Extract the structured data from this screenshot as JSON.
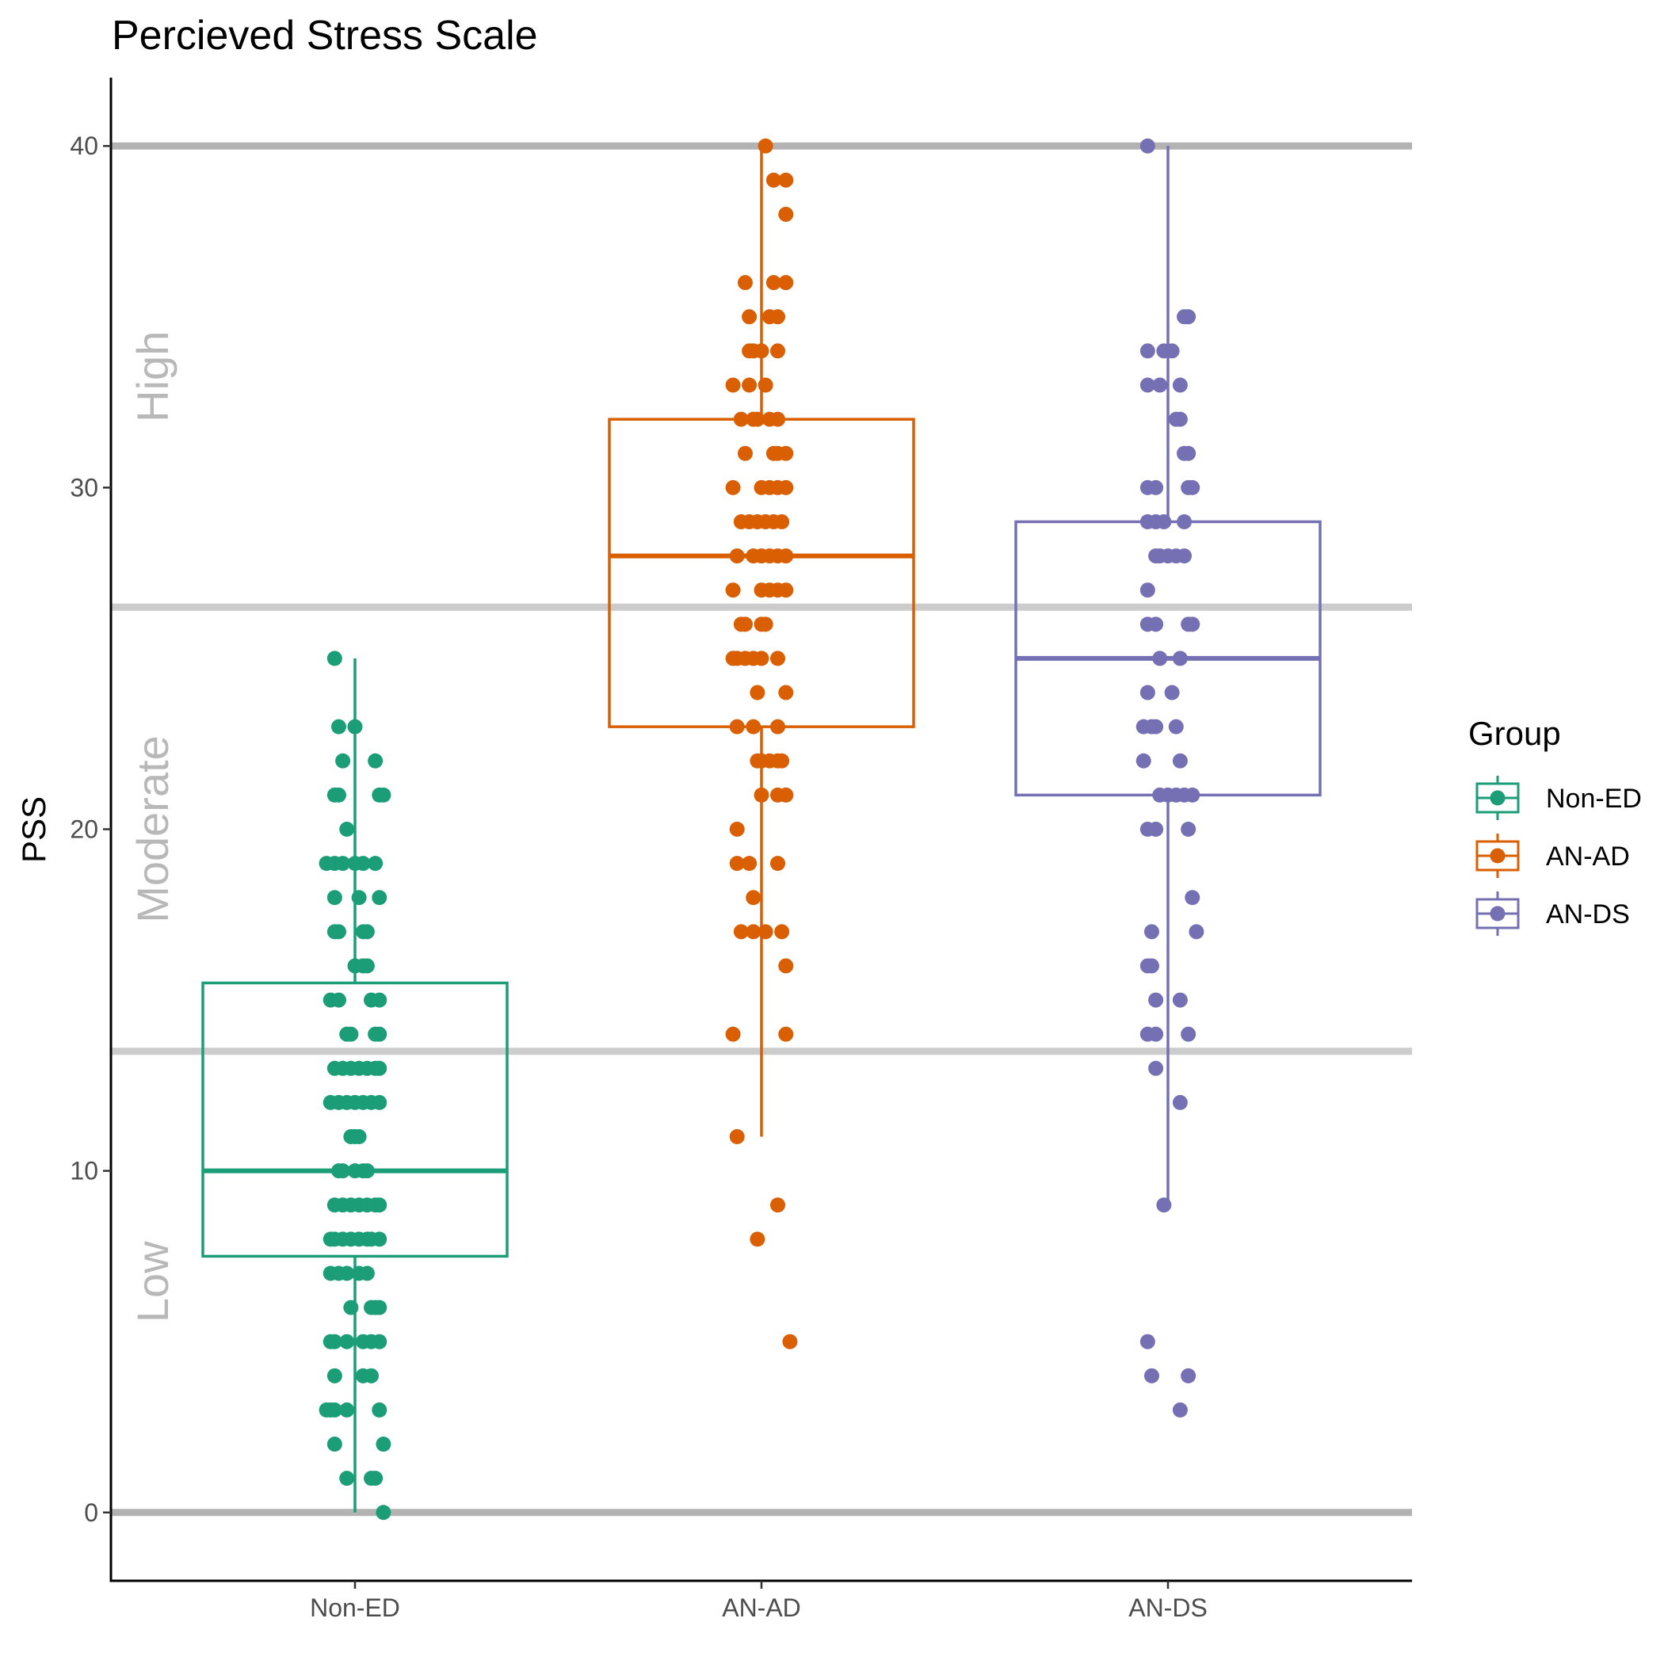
{
  "chart_data": {
    "type": "boxplot",
    "title": "Percieved Stress Scale",
    "ylabel": "PSS",
    "xlabel": "",
    "ylim": [
      -2,
      42
    ],
    "yticks": [
      0,
      10,
      20,
      30,
      40
    ],
    "categories": [
      "Non-ED",
      "AN-AD",
      "AN-DS"
    ],
    "reference_lines": [
      {
        "y": 0,
        "color": "#b3b3b3"
      },
      {
        "y": 13.5,
        "color": "#cccccc"
      },
      {
        "y": 26.5,
        "color": "#cccccc"
      },
      {
        "y": 40,
        "color": "#b3b3b3"
      }
    ],
    "bands": [
      {
        "label": "Low",
        "y": 6.75
      },
      {
        "label": "Moderate",
        "y": 20
      },
      {
        "label": "High",
        "y": 33.25
      }
    ],
    "legend": {
      "title": "Group",
      "position": "right"
    },
    "series": [
      {
        "name": "Non-ED",
        "color": "#1b9e77",
        "box": {
          "min": 0,
          "q1": 7.5,
          "median": 10,
          "q3": 15.5,
          "max": 25
        },
        "points": [
          [
            -0.05,
            25
          ],
          [
            -0.04,
            23
          ],
          [
            0.0,
            23
          ],
          [
            -0.03,
            22
          ],
          [
            0.05,
            22
          ],
          [
            -0.05,
            21
          ],
          [
            -0.04,
            21
          ],
          [
            0.06,
            21
          ],
          [
            0.07,
            21
          ],
          [
            -0.02,
            20
          ],
          [
            -0.07,
            19
          ],
          [
            -0.05,
            19
          ],
          [
            -0.03,
            19
          ],
          [
            0.0,
            19
          ],
          [
            0.02,
            19
          ],
          [
            0.05,
            19
          ],
          [
            -0.05,
            18
          ],
          [
            0.01,
            18
          ],
          [
            0.06,
            18
          ],
          [
            -0.05,
            17
          ],
          [
            -0.04,
            17
          ],
          [
            0.02,
            17
          ],
          [
            0.03,
            17
          ],
          [
            0.0,
            16
          ],
          [
            0.02,
            16
          ],
          [
            0.03,
            16
          ],
          [
            -0.06,
            15
          ],
          [
            -0.04,
            15
          ],
          [
            0.04,
            15
          ],
          [
            0.06,
            15
          ],
          [
            -0.02,
            14
          ],
          [
            -0.01,
            14
          ],
          [
            0.05,
            14
          ],
          [
            0.06,
            14
          ],
          [
            -0.05,
            13
          ],
          [
            -0.03,
            13
          ],
          [
            -0.01,
            13
          ],
          [
            0.01,
            13
          ],
          [
            0.03,
            13
          ],
          [
            0.05,
            13
          ],
          [
            0.06,
            13
          ],
          [
            -0.06,
            12
          ],
          [
            -0.04,
            12
          ],
          [
            -0.02,
            12
          ],
          [
            0.0,
            12
          ],
          [
            0.02,
            12
          ],
          [
            0.04,
            12
          ],
          [
            0.06,
            12
          ],
          [
            -0.01,
            11
          ],
          [
            0.0,
            11
          ],
          [
            0.01,
            11
          ],
          [
            -0.04,
            10
          ],
          [
            -0.03,
            10
          ],
          [
            0.0,
            10
          ],
          [
            0.02,
            10
          ],
          [
            0.03,
            10
          ],
          [
            -0.05,
            9
          ],
          [
            -0.03,
            9
          ],
          [
            -0.01,
            9
          ],
          [
            0.01,
            9
          ],
          [
            0.03,
            9
          ],
          [
            0.05,
            9
          ],
          [
            0.06,
            9
          ],
          [
            -0.06,
            8
          ],
          [
            -0.05,
            8
          ],
          [
            -0.03,
            8
          ],
          [
            -0.01,
            8
          ],
          [
            0.01,
            8
          ],
          [
            0.03,
            8
          ],
          [
            0.04,
            8
          ],
          [
            0.06,
            8
          ],
          [
            -0.06,
            7
          ],
          [
            -0.04,
            7
          ],
          [
            -0.02,
            7
          ],
          [
            0.01,
            7
          ],
          [
            0.03,
            7
          ],
          [
            -0.01,
            6
          ],
          [
            0.04,
            6
          ],
          [
            0.05,
            6
          ],
          [
            0.06,
            6
          ],
          [
            -0.06,
            5
          ],
          [
            -0.05,
            5
          ],
          [
            -0.02,
            5
          ],
          [
            0.02,
            5
          ],
          [
            0.04,
            5
          ],
          [
            0.06,
            5
          ],
          [
            -0.05,
            4
          ],
          [
            0.02,
            4
          ],
          [
            0.04,
            4
          ],
          [
            -0.07,
            3
          ],
          [
            -0.06,
            3
          ],
          [
            -0.05,
            3
          ],
          [
            -0.02,
            3
          ],
          [
            0.06,
            3
          ],
          [
            -0.05,
            2
          ],
          [
            0.07,
            2
          ],
          [
            -0.02,
            1
          ],
          [
            0.04,
            1
          ],
          [
            0.05,
            1
          ],
          [
            0.07,
            0
          ]
        ]
      },
      {
        "name": "AN-AD",
        "color": "#d95f02",
        "box": {
          "min": 11,
          "q1": 23,
          "median": 28,
          "q3": 32,
          "max": 40
        },
        "points": [
          [
            0.01,
            40
          ],
          [
            0.03,
            39
          ],
          [
            0.06,
            39
          ],
          [
            0.06,
            38
          ],
          [
            -0.04,
            36
          ],
          [
            0.03,
            36
          ],
          [
            0.06,
            36
          ],
          [
            -0.03,
            35
          ],
          [
            0.02,
            35
          ],
          [
            0.04,
            35
          ],
          [
            -0.03,
            34
          ],
          [
            -0.02,
            34
          ],
          [
            0.0,
            34
          ],
          [
            0.04,
            34
          ],
          [
            -0.07,
            33
          ],
          [
            -0.03,
            33
          ],
          [
            0.01,
            33
          ],
          [
            -0.05,
            32
          ],
          [
            -0.02,
            32
          ],
          [
            -0.01,
            32
          ],
          [
            0.02,
            32
          ],
          [
            0.04,
            32
          ],
          [
            -0.04,
            31
          ],
          [
            0.03,
            31
          ],
          [
            0.04,
            31
          ],
          [
            0.06,
            31
          ],
          [
            -0.07,
            30
          ],
          [
            0.0,
            30
          ],
          [
            0.02,
            30
          ],
          [
            0.04,
            30
          ],
          [
            0.06,
            30
          ],
          [
            -0.05,
            29
          ],
          [
            -0.03,
            29
          ],
          [
            -0.01,
            29
          ],
          [
            0.01,
            29
          ],
          [
            0.03,
            29
          ],
          [
            0.05,
            29
          ],
          [
            -0.06,
            28
          ],
          [
            -0.02,
            28
          ],
          [
            0.0,
            28
          ],
          [
            0.02,
            28
          ],
          [
            0.04,
            28
          ],
          [
            0.06,
            28
          ],
          [
            -0.07,
            27
          ],
          [
            0.0,
            27
          ],
          [
            0.02,
            27
          ],
          [
            0.04,
            27
          ],
          [
            0.06,
            27
          ],
          [
            -0.05,
            26
          ],
          [
            -0.04,
            26
          ],
          [
            0.0,
            26
          ],
          [
            0.01,
            26
          ],
          [
            -0.07,
            25
          ],
          [
            -0.06,
            25
          ],
          [
            -0.04,
            25
          ],
          [
            -0.02,
            25
          ],
          [
            0.0,
            25
          ],
          [
            0.04,
            25
          ],
          [
            -0.01,
            24
          ],
          [
            0.06,
            24
          ],
          [
            -0.06,
            23
          ],
          [
            -0.02,
            23
          ],
          [
            0.04,
            23
          ],
          [
            -0.01,
            22
          ],
          [
            0.0,
            22
          ],
          [
            0.02,
            22
          ],
          [
            0.04,
            22
          ],
          [
            0.05,
            22
          ],
          [
            0.0,
            21
          ],
          [
            0.04,
            21
          ],
          [
            0.06,
            21
          ],
          [
            -0.06,
            20
          ],
          [
            -0.06,
            19
          ],
          [
            -0.03,
            19
          ],
          [
            0.04,
            19
          ],
          [
            -0.02,
            18
          ],
          [
            -0.05,
            17
          ],
          [
            -0.02,
            17
          ],
          [
            0.01,
            17
          ],
          [
            0.05,
            17
          ],
          [
            0.06,
            16
          ],
          [
            -0.07,
            14
          ],
          [
            0.06,
            14
          ],
          [
            -0.06,
            11
          ],
          [
            0.04,
            9
          ],
          [
            -0.01,
            8
          ],
          [
            0.07,
            5
          ]
        ]
      },
      {
        "name": "AN-DS",
        "color": "#7570b3",
        "box": {
          "min": 9,
          "q1": 21,
          "median": 25,
          "q3": 29,
          "max": 40
        },
        "points": [
          [
            -0.05,
            40
          ],
          [
            0.04,
            35
          ],
          [
            0.05,
            35
          ],
          [
            -0.05,
            34
          ],
          [
            -0.01,
            34
          ],
          [
            0.01,
            34
          ],
          [
            -0.05,
            33
          ],
          [
            -0.02,
            33
          ],
          [
            0.03,
            33
          ],
          [
            0.02,
            32
          ],
          [
            0.03,
            32
          ],
          [
            0.04,
            31
          ],
          [
            0.05,
            31
          ],
          [
            -0.05,
            30
          ],
          [
            -0.03,
            30
          ],
          [
            0.05,
            30
          ],
          [
            0.06,
            30
          ],
          [
            -0.05,
            29
          ],
          [
            -0.03,
            29
          ],
          [
            -0.01,
            29
          ],
          [
            0.04,
            29
          ],
          [
            -0.03,
            28
          ],
          [
            -0.02,
            28
          ],
          [
            0.0,
            28
          ],
          [
            0.02,
            28
          ],
          [
            0.04,
            28
          ],
          [
            -0.05,
            27
          ],
          [
            -0.05,
            26
          ],
          [
            -0.03,
            26
          ],
          [
            0.05,
            26
          ],
          [
            0.06,
            26
          ],
          [
            -0.02,
            25
          ],
          [
            0.03,
            25
          ],
          [
            -0.05,
            24
          ],
          [
            0.01,
            24
          ],
          [
            -0.06,
            23
          ],
          [
            -0.04,
            23
          ],
          [
            -0.03,
            23
          ],
          [
            0.02,
            23
          ],
          [
            -0.06,
            22
          ],
          [
            0.03,
            22
          ],
          [
            -0.02,
            21
          ],
          [
            0.0,
            21
          ],
          [
            0.02,
            21
          ],
          [
            0.04,
            21
          ],
          [
            0.06,
            21
          ],
          [
            -0.05,
            20
          ],
          [
            -0.03,
            20
          ],
          [
            0.05,
            20
          ],
          [
            0.06,
            18
          ],
          [
            -0.04,
            17
          ],
          [
            0.07,
            17
          ],
          [
            -0.05,
            16
          ],
          [
            -0.04,
            16
          ],
          [
            -0.03,
            15
          ],
          [
            0.03,
            15
          ],
          [
            -0.05,
            14
          ],
          [
            -0.03,
            14
          ],
          [
            0.05,
            14
          ],
          [
            -0.03,
            13
          ],
          [
            0.03,
            12
          ],
          [
            -0.01,
            9
          ],
          [
            -0.05,
            5
          ],
          [
            -0.04,
            4
          ],
          [
            0.05,
            4
          ],
          [
            0.03,
            3
          ]
        ]
      }
    ]
  }
}
